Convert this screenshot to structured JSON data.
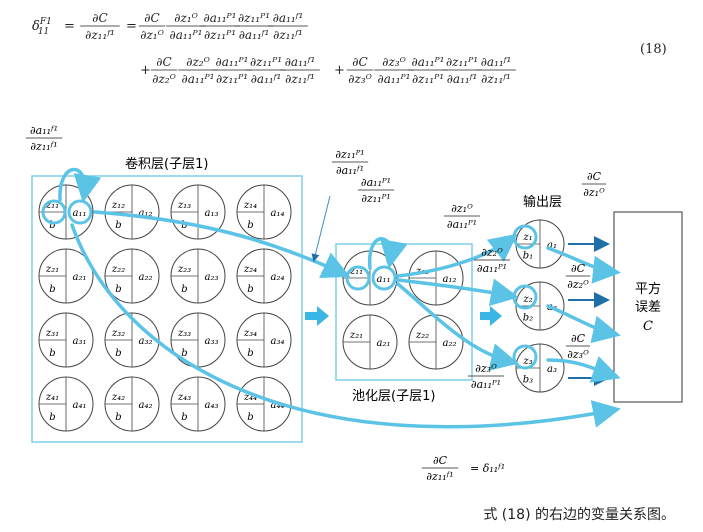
{
  "equation": {
    "number": "(18)",
    "lhs_sym": "δ",
    "lhs_sup": "F1",
    "lhs_sub": "11",
    "line1_rhs": "∂C/∂z₁ᴼ · ∂z₁ᴼ/∂a₁₁ᴾ¹ · ∂a₁₁ᴾ¹/∂z₁₁ᴾ¹ · ∂z₁₁ᴾ¹/∂a₁₁ᶠ¹ · ∂a₁₁ᶠ¹/∂z₁₁ᶠ¹",
    "line2_rhs": "+ ∂C/∂z₂ᴼ · ∂z₂ᴼ/∂a₁₁ᴾ¹ · ∂a₁₁ᴾ¹/∂z₁₁ᴾ¹ · ∂z₁₁ᴾ¹/∂a₁₁ᶠ¹ · ∂a₁₁ᶠ¹/∂z₁₁ᶠ¹ + ∂C/∂z₃ᴼ · ∂z₃ᴼ/∂a₁₁ᴾ¹ · ∂a₁₁ᴾ¹/∂z₁₁ᴾ¹ · ∂z₁₁ᴾ¹/∂a₁₁ᶠ¹ · ∂a₁₁ᶠ¹/∂z₁₁ᶠ¹"
  },
  "labels": {
    "conv_layer": "卷积层(子层1)",
    "pool_layer": "池化层(子层1)",
    "output_layer": "输出层",
    "cost_box": [
      "平方",
      "误差",
      "C"
    ]
  },
  "conv_neurons": [
    {
      "z": "11",
      "a": "11"
    },
    {
      "z": "12",
      "a": "12"
    },
    {
      "z": "13",
      "a": "13"
    },
    {
      "z": "14",
      "a": "14"
    },
    {
      "z": "21",
      "a": "21"
    },
    {
      "z": "22",
      "a": "22"
    },
    {
      "z": "23",
      "a": "23"
    },
    {
      "z": "24",
      "a": "24"
    },
    {
      "z": "31",
      "a": "31"
    },
    {
      "z": "32",
      "a": "32"
    },
    {
      "z": "33",
      "a": "33"
    },
    {
      "z": "34",
      "a": "34"
    },
    {
      "z": "41",
      "a": "41"
    },
    {
      "z": "42",
      "a": "42"
    },
    {
      "z": "43",
      "a": "43"
    },
    {
      "z": "44",
      "a": "44"
    }
  ],
  "pool_neurons": [
    {
      "z": "11",
      "a": "11"
    },
    {
      "z": "12",
      "a": "12"
    },
    {
      "z": "21",
      "a": "21"
    },
    {
      "z": "22",
      "a": "22"
    }
  ],
  "output_neurons": [
    "1",
    "2",
    "3"
  ],
  "derivative_labels": {
    "conv_act": {
      "num": "∂a₁₁ᶠ¹",
      "den": "∂z₁₁ᶠ¹"
    },
    "pool_in": {
      "num": "∂z₁₁ᴾ¹",
      "den": "∂a₁₁ᶠ¹"
    },
    "pool_act": {
      "num": "∂a₁₁ᴾ¹",
      "den": "∂z₁₁ᴾ¹"
    },
    "out1": {
      "num": "∂z₁ᴼ",
      "den": "∂a₁₁ᴾ¹"
    },
    "out2": {
      "num": "∂z₂ᴼ",
      "den": "∂a₁₁ᴾ¹"
    },
    "out3": {
      "num": "∂z₃ᴼ",
      "den": "∂a₁₁ᴾ¹"
    },
    "cost1": {
      "num": "∂C",
      "den": "∂z₁ᴼ"
    },
    "cost2": {
      "num": "∂C",
      "den": "∂z₂ᴼ"
    },
    "cost3": {
      "num": "∂C",
      "den": "∂z₃ᴼ"
    },
    "delta": {
      "num": "∂C",
      "den": "∂z₁₁ᶠ¹",
      "rhs": "= δ₁₁ᶠ¹"
    }
  },
  "caption": "式 (18) 的右边的变量关系图。",
  "colors": {
    "accent": "#5bc3e6",
    "frame": "#7fcfe6",
    "dark": "#1e6fa8"
  }
}
